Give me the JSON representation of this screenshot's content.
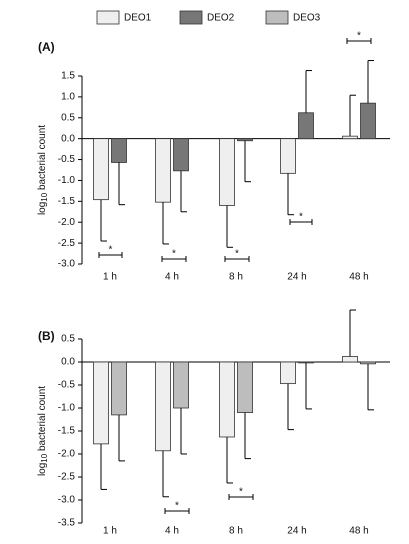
{
  "legend": [
    {
      "name": "DEO1",
      "color": "#efefef"
    },
    {
      "name": "DEO2",
      "color": "#777777"
    },
    {
      "name": "DEO3",
      "color": "#bdbdbd"
    }
  ],
  "chart_data": [
    {
      "type": "bar",
      "title": "(A)",
      "ylabel": {
        "base": "log",
        "subscript": "10",
        "rest": " bacterial count"
      },
      "categories": [
        "1 h",
        "4 h",
        "8 h",
        "24 h",
        "48 h"
      ],
      "series": [
        {
          "name": "DEO1",
          "color": "#efefef",
          "values": [
            -1.46,
            -1.52,
            -1.6,
            -0.83,
            0.06
          ],
          "errors": [
            0.99,
            1.0,
            1.0,
            0.99,
            0.98
          ]
        },
        {
          "name": "DEO2",
          "color": "#777777",
          "values": [
            -0.57,
            -0.77,
            -0.05,
            0.62,
            0.85
          ],
          "errors": [
            1.01,
            0.98,
            0.98,
            1.01,
            1.02
          ]
        }
      ],
      "ylim": [
        -3.0,
        1.5
      ],
      "yticks": [
        1.5,
        {
          "value": 1.0,
          "label": "1.0"
        },
        0.5,
        {
          "value": 0.0,
          "label": "0.0"
        },
        -0.5,
        {
          "value": -1.0,
          "label": "-1.0"
        },
        -1.5,
        {
          "value": -2.0,
          "label": "-2.0"
        },
        -2.5,
        {
          "value": -3.0,
          "label": "-3.0"
        }
      ],
      "significance": [
        "*",
        "*",
        "*",
        "*",
        "*"
      ]
    },
    {
      "type": "bar",
      "title": "(B)",
      "ylabel": {
        "base": "log",
        "subscript": "10",
        "rest": " bacterial count"
      },
      "categories": [
        "1 h",
        "4 h",
        "8 h",
        "24 h",
        "48 h"
      ],
      "series": [
        {
          "name": "DEO1",
          "color": "#efefef",
          "values": [
            -1.78,
            -1.93,
            -1.63,
            -0.47,
            0.12
          ],
          "errors": [
            0.99,
            1.0,
            1.0,
            1.0,
            1.01
          ]
        },
        {
          "name": "DEO3",
          "color": "#bdbdbd",
          "values": [
            -1.15,
            -1.0,
            -1.1,
            -0.02,
            -0.04
          ],
          "errors": [
            1.0,
            1.0,
            1.0,
            1.0,
            1.0
          ]
        }
      ],
      "ylim": [
        -3.5,
        0.5
      ],
      "yticks": [
        0.5,
        {
          "value": 0.0,
          "label": "0.0"
        },
        -0.5,
        {
          "value": -1.0,
          "label": "-1.0"
        },
        -1.5,
        {
          "value": -2.0,
          "label": "-2.0"
        },
        -2.5,
        {
          "value": -3.0,
          "label": "-3.0"
        },
        -3.5
      ],
      "significance": [
        "*",
        "*"
      ]
    }
  ]
}
